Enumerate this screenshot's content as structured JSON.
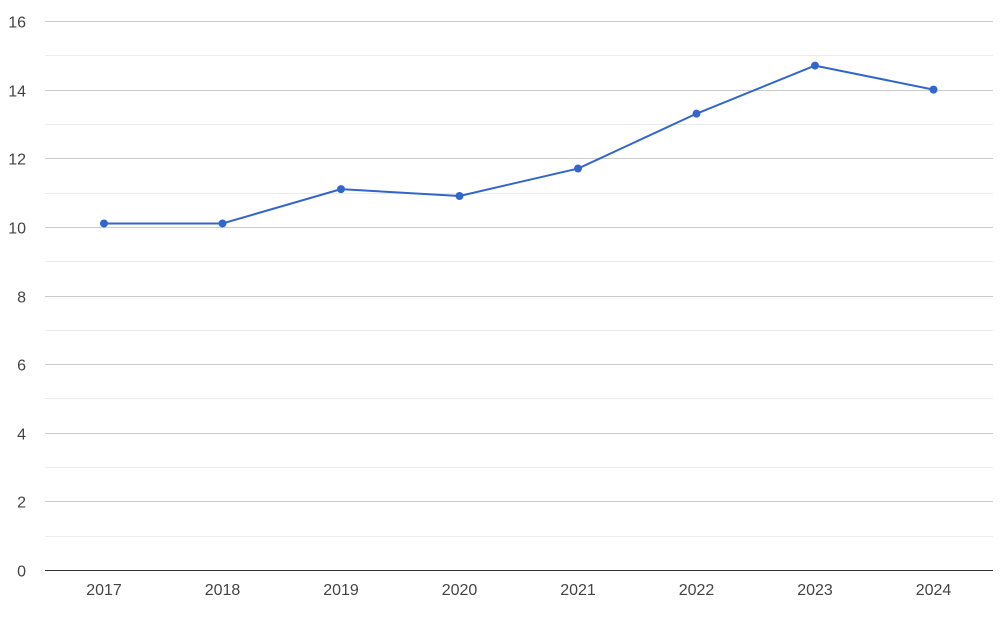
{
  "chart_data": {
    "type": "line",
    "title": "",
    "xlabel": "",
    "ylabel": "",
    "x": [
      "2017",
      "2018",
      "2019",
      "2020",
      "2021",
      "2022",
      "2023",
      "2024"
    ],
    "series": [
      {
        "values": [
          10.1,
          10.1,
          11.1,
          10.9,
          11.7,
          13.3,
          14.7,
          14.0
        ],
        "color": "#3366cc"
      }
    ],
    "ylim": [
      0,
      16
    ],
    "yticks": [
      0,
      2,
      4,
      6,
      8,
      10,
      12,
      14,
      16
    ],
    "grid": true,
    "legend": "none",
    "colors": {
      "line": "#3366cc",
      "grid_major": "#cccccc",
      "grid_minor": "#ebebeb",
      "baseline": "#333333",
      "text": "#444444"
    }
  }
}
